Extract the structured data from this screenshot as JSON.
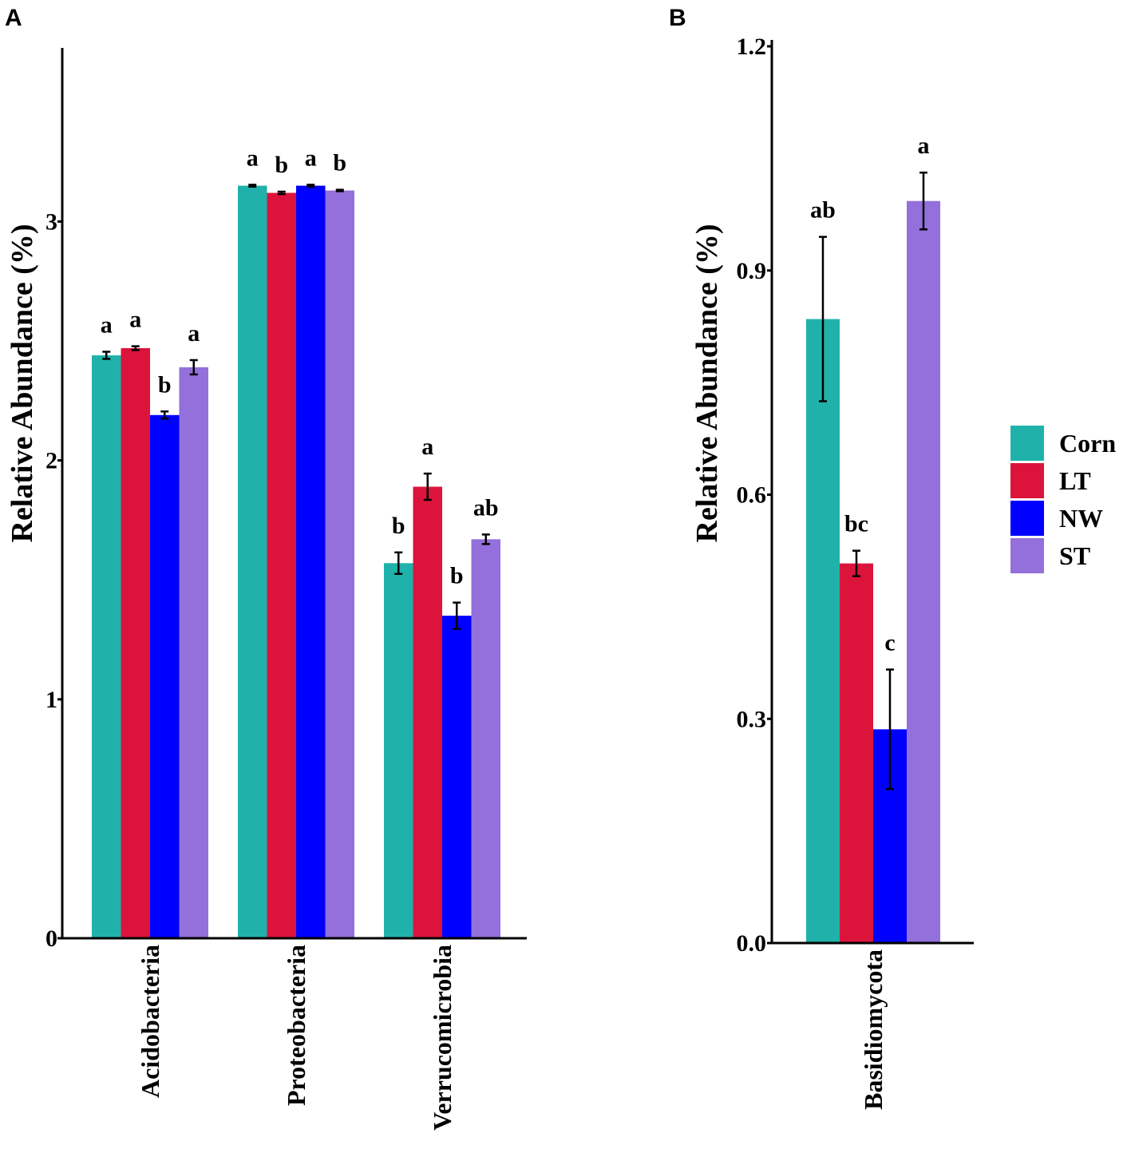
{
  "colors": {
    "Corn": "#20b2aa",
    "LT": "#dc143c",
    "NW": "#0000ff",
    "ST": "#9370db"
  },
  "legend": [
    "Corn",
    "LT",
    "NW",
    "ST"
  ],
  "chart_data": [
    {
      "panel": "A",
      "type": "bar",
      "title": "",
      "xlabel": "",
      "ylabel": "Relative Abundance (%)",
      "ylim": [
        0,
        3.7
      ],
      "yticks": [
        0,
        1,
        2,
        3
      ],
      "categories": [
        "Acidobacteria",
        "Proteobacteria",
        "Verrucomicrobia"
      ],
      "series": [
        {
          "name": "Corn",
          "values": [
            2.44,
            3.15,
            1.57
          ],
          "errors": [
            0.015,
            0.004,
            0.045
          ],
          "labels": [
            "a",
            "a",
            "b"
          ]
        },
        {
          "name": "LT",
          "values": [
            2.47,
            3.12,
            1.89
          ],
          "errors": [
            0.008,
            0.005,
            0.055
          ],
          "labels": [
            "a",
            "b",
            "a"
          ]
        },
        {
          "name": "NW",
          "values": [
            2.19,
            3.15,
            1.35
          ],
          "errors": [
            0.015,
            0.004,
            0.055
          ],
          "labels": [
            "b",
            "a",
            "b"
          ]
        },
        {
          "name": "ST",
          "values": [
            2.39,
            3.13,
            1.67
          ],
          "errors": [
            0.03,
            0.003,
            0.02
          ],
          "labels": [
            "a",
            "b",
            "ab"
          ]
        }
      ]
    },
    {
      "panel": "B",
      "type": "bar",
      "title": "",
      "xlabel": "",
      "ylabel": "Relative Abundance (%)",
      "ylim": [
        0,
        1.2
      ],
      "yticks": [
        "0.0",
        "0.3",
        "0.6",
        "0.9",
        "1.2"
      ],
      "categories": [
        "Basidiomycota"
      ],
      "series": [
        {
          "name": "Corn",
          "values": [
            0.835
          ],
          "errors": [
            0.11
          ],
          "labels": [
            "ab"
          ]
        },
        {
          "name": "LT",
          "values": [
            0.508
          ],
          "errors": [
            0.017
          ],
          "labels": [
            "bc"
          ]
        },
        {
          "name": "NW",
          "values": [
            0.286
          ],
          "errors": [
            0.08
          ],
          "labels": [
            "c"
          ]
        },
        {
          "name": "ST",
          "values": [
            0.993
          ],
          "errors": [
            0.038
          ],
          "labels": [
            "a"
          ]
        }
      ]
    }
  ]
}
